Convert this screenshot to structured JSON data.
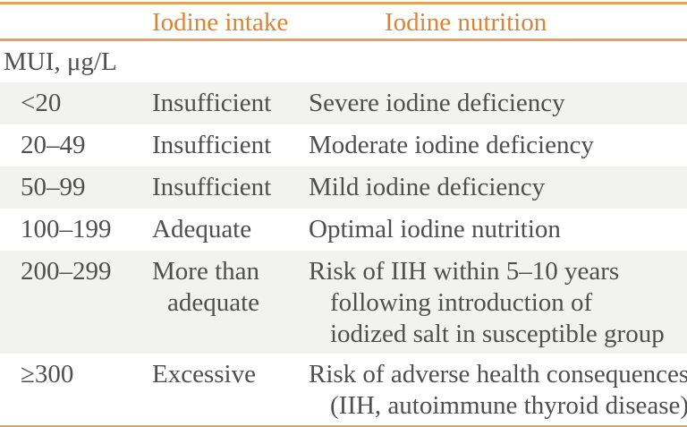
{
  "table": {
    "headers": {
      "intake": "Iodine intake",
      "nutrition": "Iodine nutrition"
    },
    "unit_label": "MUI, μg/L",
    "rows": [
      {
        "mui": "<20",
        "intake": [
          "Insufficient"
        ],
        "nutrition": [
          "Severe iodine deficiency"
        ]
      },
      {
        "mui": "20–49",
        "intake": [
          "Insufficient"
        ],
        "nutrition": [
          "Moderate iodine deficiency"
        ]
      },
      {
        "mui": "50–99",
        "intake": [
          "Insufficient"
        ],
        "nutrition": [
          "Mild iodine deficiency"
        ]
      },
      {
        "mui": "100–199",
        "intake": [
          "Adequate"
        ],
        "nutrition": [
          "Optimal iodine nutrition"
        ]
      },
      {
        "mui": "200–299",
        "intake": [
          "More than",
          "adequate"
        ],
        "nutrition": [
          "Risk of IIH within 5–10 years",
          "following introduction of",
          "iodized salt in susceptible group"
        ]
      },
      {
        "mui": "≥300",
        "intake": [
          "Excessive"
        ],
        "nutrition": [
          "Risk of adverse health consequences",
          "(IIH, autoimmune thyroid disease)"
        ]
      }
    ],
    "colors": {
      "accent_orange_text": "#DD8432",
      "rule_orange": "#E5A258",
      "stripe_gray": "#F2F2F0",
      "body_text_gray": "#4F4F4F"
    }
  }
}
